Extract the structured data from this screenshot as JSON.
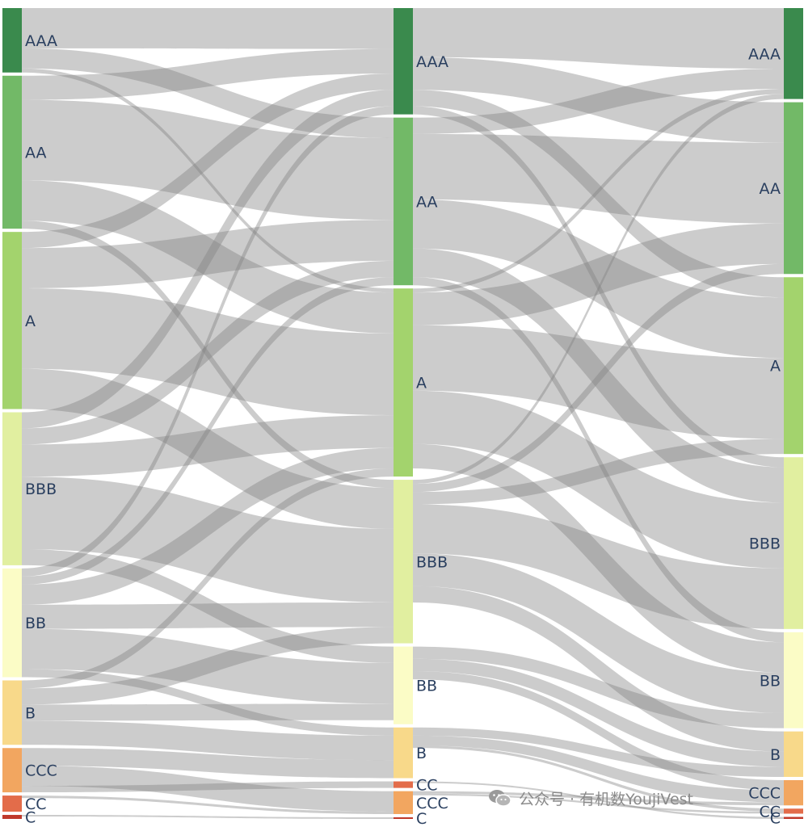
{
  "chart_data": {
    "type": "sankey",
    "title": "",
    "stages": [
      {
        "name": "",
        "nodes": [
          {
            "label": "AAA",
            "value": 80,
            "color": "#3a8a4d"
          },
          {
            "label": "AA",
            "value": 190,
            "color": "#72b967"
          },
          {
            "label": "A",
            "value": 220,
            "color": "#a3d36d"
          },
          {
            "label": "BBB",
            "value": 190,
            "color": "#e1efa0"
          },
          {
            "label": "BB",
            "value": 135,
            "color": "#fbfcc6"
          },
          {
            "label": "B",
            "value": 80,
            "color": "#f8d98a"
          },
          {
            "label": "CCC",
            "value": 55,
            "color": "#f2a660"
          },
          {
            "label": "CC",
            "value": 20,
            "color": "#e36c4a"
          },
          {
            "label": "C",
            "value": 5,
            "color": "#c0392b"
          }
        ]
      },
      {
        "name": "",
        "nodes": [
          {
            "label": "AAA",
            "value": 130,
            "color": "#3a8a4d"
          },
          {
            "label": "AA",
            "value": 205,
            "color": "#72b967"
          },
          {
            "label": "A",
            "value": 230,
            "color": "#a3d36d"
          },
          {
            "label": "BBB",
            "value": 200,
            "color": "#e1efa0"
          },
          {
            "label": "BB",
            "value": 95,
            "color": "#fbfcc6"
          },
          {
            "label": "B",
            "value": 62,
            "color": "#f8d98a"
          },
          {
            "label": "CC",
            "value": 8,
            "color": "#e36c4a"
          },
          {
            "label": "CCC",
            "value": 28,
            "color": "#f2a660"
          },
          {
            "label": "C",
            "value": 2,
            "color": "#c0392b"
          }
        ]
      },
      {
        "name": "",
        "nodes": [
          {
            "label": "AAA",
            "value": 90,
            "color": "#3a8a4d"
          },
          {
            "label": "AA",
            "value": 170,
            "color": "#72b967"
          },
          {
            "label": "A",
            "value": 175,
            "color": "#a3d36d"
          },
          {
            "label": "BBB",
            "value": 170,
            "color": "#e1efa0"
          },
          {
            "label": "BB",
            "value": 95,
            "color": "#fbfcc6"
          },
          {
            "label": "B",
            "value": 45,
            "color": "#f8d98a"
          },
          {
            "label": "CCC",
            "value": 25,
            "color": "#f2a660"
          },
          {
            "label": "CC",
            "value": 5,
            "color": "#e36c4a"
          },
          {
            "label": "C",
            "value": 2,
            "color": "#c0392b"
          }
        ]
      }
    ],
    "links": [
      [
        {
          "source": "AAA",
          "target": "AAA",
          "value": 50
        },
        {
          "source": "AAA",
          "target": "AA",
          "value": 25
        },
        {
          "source": "AAA",
          "target": "A",
          "value": 5
        },
        {
          "source": "AA",
          "target": "AAA",
          "value": 30
        },
        {
          "source": "AA",
          "target": "AA",
          "value": 100
        },
        {
          "source": "AA",
          "target": "A",
          "value": 50
        },
        {
          "source": "AA",
          "target": "BBB",
          "value": 10
        },
        {
          "source": "A",
          "target": "AAA",
          "value": 20
        },
        {
          "source": "A",
          "target": "AA",
          "value": 50
        },
        {
          "source": "A",
          "target": "A",
          "value": 100
        },
        {
          "source": "A",
          "target": "BBB",
          "value": 50
        },
        {
          "source": "BBB",
          "target": "AAA",
          "value": 20
        },
        {
          "source": "BBB",
          "target": "AA",
          "value": 20
        },
        {
          "source": "BBB",
          "target": "A",
          "value": 40
        },
        {
          "source": "BBB",
          "target": "BBB",
          "value": 90
        },
        {
          "source": "BBB",
          "target": "BB",
          "value": 20
        },
        {
          "source": "BB",
          "target": "AAA",
          "value": 10
        },
        {
          "source": "BB",
          "target": "AA",
          "value": 10
        },
        {
          "source": "BB",
          "target": "A",
          "value": 25
        },
        {
          "source": "BB",
          "target": "BBB",
          "value": 30
        },
        {
          "source": "BB",
          "target": "BB",
          "value": 50
        },
        {
          "source": "BB",
          "target": "B",
          "value": 10
        },
        {
          "source": "B",
          "target": "A",
          "value": 10
        },
        {
          "source": "B",
          "target": "BBB",
          "value": 20
        },
        {
          "source": "B",
          "target": "BB",
          "value": 20
        },
        {
          "source": "B",
          "target": "B",
          "value": 30
        },
        {
          "source": "CCC",
          "target": "B",
          "value": 22
        },
        {
          "source": "CCC",
          "target": "CCC",
          "value": 25
        },
        {
          "source": "CCC",
          "target": "CC",
          "value": 8
        },
        {
          "source": "CC",
          "target": "B",
          "value": 0
        },
        {
          "source": "CC",
          "target": "CCC",
          "value": 3
        },
        {
          "source": "C",
          "target": "C",
          "value": 2
        }
      ],
      [
        {
          "source": "AAA",
          "target": "AAA",
          "value": 60
        },
        {
          "source": "AAA",
          "target": "AA",
          "value": 40
        },
        {
          "source": "AAA",
          "target": "A",
          "value": 20
        },
        {
          "source": "AAA",
          "target": "BBB",
          "value": 10
        },
        {
          "source": "AA",
          "target": "AAA",
          "value": 20
        },
        {
          "source": "AA",
          "target": "AA",
          "value": 80
        },
        {
          "source": "AA",
          "target": "A",
          "value": 60
        },
        {
          "source": "AA",
          "target": "BBB",
          "value": 35
        },
        {
          "source": "AA",
          "target": "BB",
          "value": 10
        },
        {
          "source": "A",
          "target": "AAA",
          "value": 5
        },
        {
          "source": "A",
          "target": "AA",
          "value": 40
        },
        {
          "source": "A",
          "target": "A",
          "value": 80
        },
        {
          "source": "A",
          "target": "BBB",
          "value": 65
        },
        {
          "source": "A",
          "target": "BB",
          "value": 30
        },
        {
          "source": "BBB",
          "target": "AAA",
          "value": 5
        },
        {
          "source": "BBB",
          "target": "AA",
          "value": 10
        },
        {
          "source": "BBB",
          "target": "A",
          "value": 15
        },
        {
          "source": "BBB",
          "target": "BBB",
          "value": 60
        },
        {
          "source": "BBB",
          "target": "BB",
          "value": 40
        },
        {
          "source": "BBB",
          "target": "B",
          "value": 20
        },
        {
          "source": "BB",
          "target": "BBB",
          "value": 0
        },
        {
          "source": "BB",
          "target": "BB",
          "value": 15
        },
        {
          "source": "BB",
          "target": "B",
          "value": 15
        },
        {
          "source": "BB",
          "target": "CCC",
          "value": 10
        },
        {
          "source": "B",
          "target": "B",
          "value": 10
        },
        {
          "source": "B",
          "target": "CCC",
          "value": 12
        },
        {
          "source": "B",
          "target": "CC",
          "value": 3
        },
        {
          "source": "CC",
          "target": "C",
          "value": 2
        },
        {
          "source": "CCC",
          "target": "CCC",
          "value": 3
        },
        {
          "source": "CCC",
          "target": "CC",
          "value": 2
        }
      ]
    ],
    "link_color": "rgba(128,128,128,0.4)"
  },
  "watermark": {
    "text": "公众号 · 有机数YoujiVest",
    "icon": "wechat-icon"
  }
}
